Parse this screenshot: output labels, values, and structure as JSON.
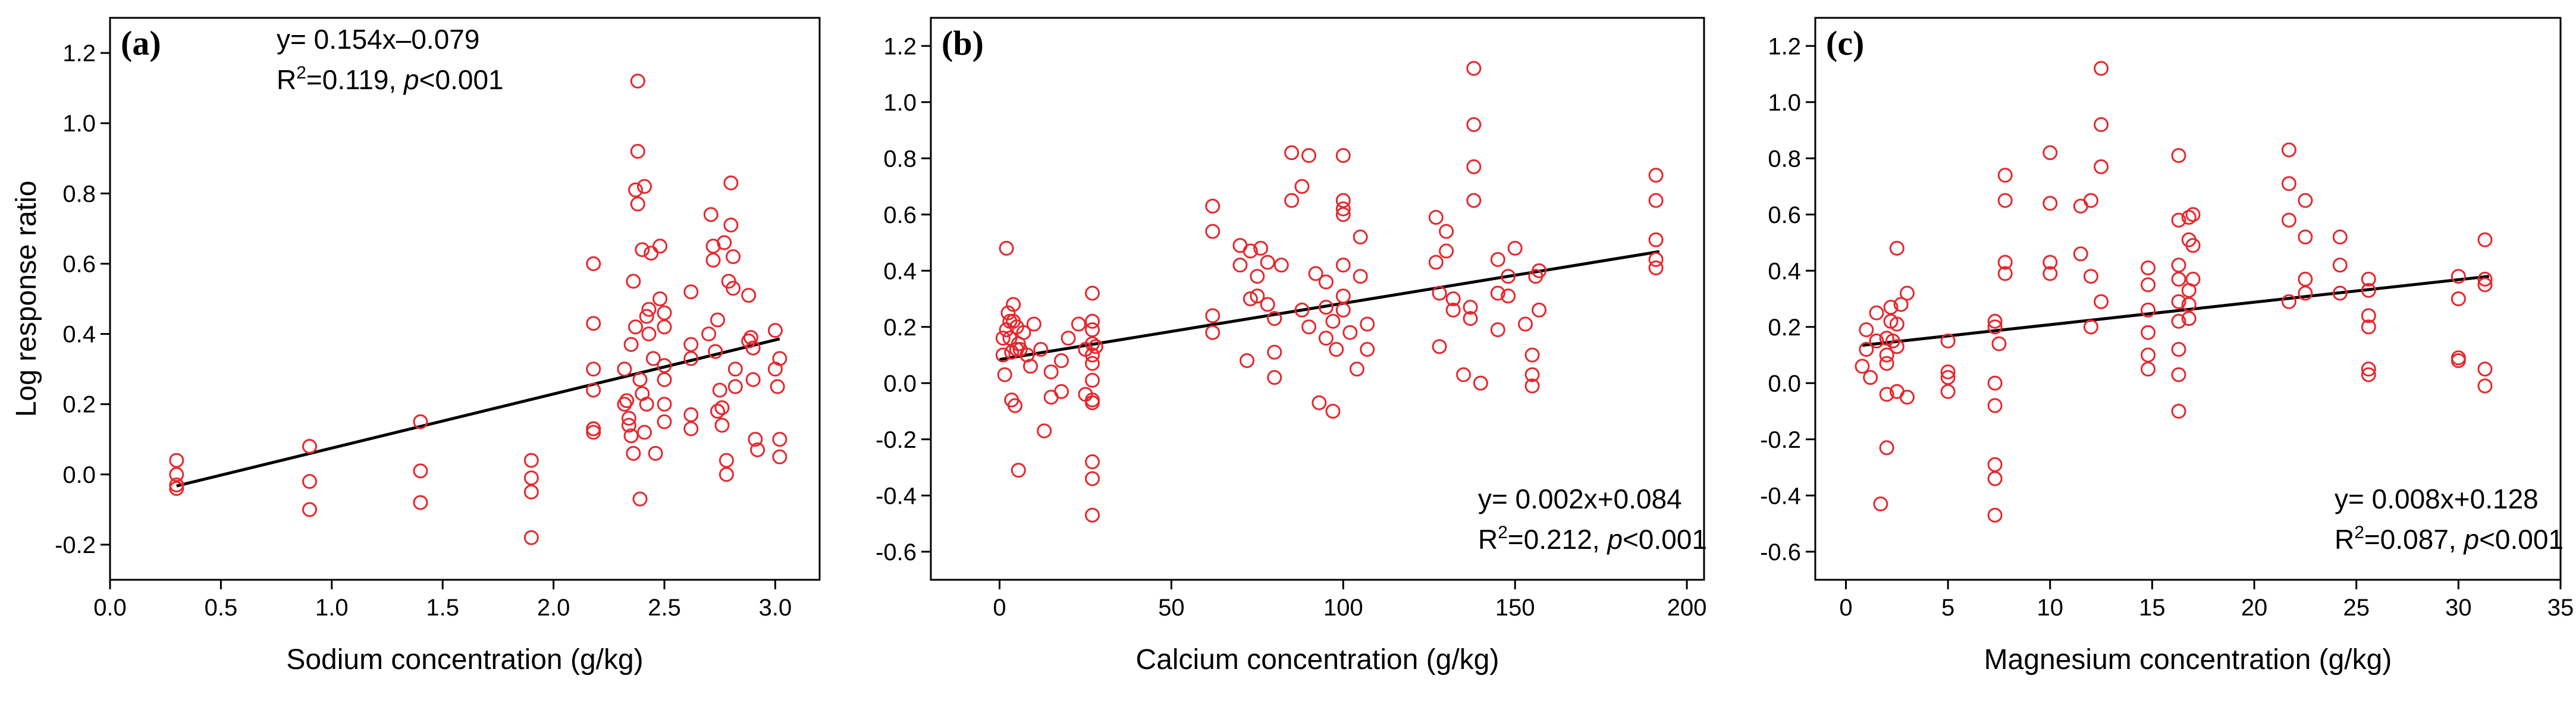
{
  "chart_data": [
    {
      "type": "scatter",
      "panel_label": "(a)",
      "xlabel": "Sodium concentration (g/kg)",
      "ylabel": "Log response ratio",
      "xlim": [
        0.0,
        3.2
      ],
      "ylim": [
        -0.3,
        1.3
      ],
      "xticks": [
        0.0,
        0.5,
        1.0,
        1.5,
        2.0,
        2.5,
        3.0
      ],
      "xtick_labels": [
        "0.0",
        "0.5",
        "1.0",
        "1.5",
        "2.0",
        "2.5",
        "3.0"
      ],
      "yticks": [
        -0.2,
        0.0,
        0.2,
        0.4,
        0.6,
        0.8,
        1.0,
        1.2
      ],
      "ytick_labels": [
        "-0.2",
        "0.0",
        "0.2",
        "0.4",
        "0.6",
        "0.8",
        "1.0",
        "1.2"
      ],
      "equation": {
        "line1": "y= 0.154x–0.079",
        "r2_prefix": "R",
        "r2_sup": "2",
        "r2_value": "=0.119, ",
        "p_symbol": "p",
        "p_value": "<0.001",
        "position": "top-center"
      },
      "fit_line": {
        "slope": 0.154,
        "intercept": -0.079,
        "x_range": [
          0.3,
          3.02
        ]
      },
      "marker_color": "#e8262b",
      "line_color": "#000000",
      "x": [
        0.3,
        0.3,
        0.3,
        0.3,
        0.9,
        0.9,
        0.9,
        1.4,
        1.4,
        1.4,
        1.9,
        1.9,
        1.9,
        1.9,
        2.18,
        2.18,
        2.18,
        2.18,
        2.18,
        2.18,
        2.18,
        2.32,
        2.32,
        2.33,
        2.34,
        2.34,
        2.35,
        2.35,
        2.36,
        2.36,
        2.37,
        2.37,
        2.38,
        2.38,
        2.38,
        2.39,
        2.39,
        2.4,
        2.4,
        2.41,
        2.41,
        2.42,
        2.42,
        2.43,
        2.43,
        2.44,
        2.45,
        2.46,
        2.48,
        2.48,
        2.5,
        2.5,
        2.5,
        2.5,
        2.5,
        2.5,
        2.62,
        2.62,
        2.62,
        2.62,
        2.62,
        2.7,
        2.71,
        2.72,
        2.72,
        2.73,
        2.74,
        2.74,
        2.75,
        2.76,
        2.76,
        2.77,
        2.78,
        2.78,
        2.79,
        2.8,
        2.8,
        2.81,
        2.81,
        2.82,
        2.82,
        2.88,
        2.88,
        2.89,
        2.9,
        2.9,
        2.91,
        2.92,
        3.0,
        3.0,
        3.01,
        3.02,
        3.02,
        3.02
      ],
      "y": [
        0.04,
        0.0,
        -0.03,
        -0.04,
        0.08,
        -0.02,
        -0.1,
        0.15,
        0.01,
        -0.08,
        0.04,
        -0.01,
        -0.05,
        -0.18,
        0.6,
        0.43,
        0.3,
        0.24,
        0.12,
        0.13,
        0.13,
        0.3,
        0.2,
        0.21,
        0.14,
        0.16,
        0.11,
        0.37,
        0.55,
        0.06,
        0.81,
        0.42,
        1.12,
        0.92,
        0.77,
        0.27,
        -0.07,
        0.23,
        0.64,
        0.82,
        0.12,
        0.2,
        0.45,
        0.47,
        0.4,
        0.63,
        0.33,
        0.06,
        0.65,
        0.5,
        0.42,
        0.46,
        0.31,
        0.27,
        0.2,
        0.15,
        0.52,
        0.37,
        0.33,
        0.17,
        0.13,
        0.4,
        0.74,
        0.65,
        0.61,
        0.35,
        0.44,
        0.18,
        0.24,
        0.19,
        0.14,
        0.66,
        0.04,
        0.0,
        0.55,
        0.83,
        0.71,
        0.62,
        0.53,
        0.3,
        0.25,
        0.51,
        0.38,
        0.39,
        0.36,
        0.27,
        0.1,
        0.07,
        0.41,
        0.3,
        0.25,
        0.33,
        0.1,
        0.05
      ]
    },
    {
      "type": "scatter",
      "panel_label": "(b)",
      "xlabel": "Calcium concentration (g/kg)",
      "ylabel": "",
      "xlim": [
        -20,
        205
      ],
      "ylim": [
        -0.7,
        1.3
      ],
      "xticks": [
        0,
        50,
        100,
        150,
        200
      ],
      "xtick_labels": [
        "0",
        "50",
        "100",
        "150",
        "200"
      ],
      "yticks": [
        -0.6,
        -0.4,
        -0.2,
        0.0,
        0.2,
        0.4,
        0.6,
        0.8,
        1.0,
        1.2
      ],
      "ytick_labels": [
        "-0.6",
        "-0.4",
        "-0.2",
        "0.0",
        "0.2",
        "0.4",
        "0.6",
        "0.8",
        "1.0",
        "1.2"
      ],
      "equation": {
        "line1": "y= 0.002x+0.084",
        "r2_prefix": "R",
        "r2_sup": "2",
        "r2_value": "=0.212, ",
        "p_symbol": "p",
        "p_value": "<0.001",
        "position": "bottom-right"
      },
      "fit_line": {
        "slope": 0.002,
        "intercept": 0.084,
        "x_range": [
          0,
          192
        ]
      },
      "marker_color": "#e8262b",
      "line_color": "#000000",
      "x": [
        1,
        1,
        1.5,
        2,
        2,
        2.5,
        3,
        3,
        3.5,
        3.5,
        4,
        4,
        4.5,
        5,
        5,
        5.5,
        5.5,
        6,
        7,
        8,
        9,
        10,
        12,
        13,
        15,
        15,
        18,
        18,
        20,
        23,
        25,
        25,
        27,
        27,
        27,
        27,
        27,
        27,
        27,
        27,
        27,
        27,
        27,
        27,
        28,
        62,
        62,
        62,
        62,
        70,
        70,
        72,
        73,
        73,
        75,
        75,
        76,
        78,
        78,
        80,
        80,
        80,
        82,
        85,
        85,
        88,
        88,
        90,
        90,
        92,
        93,
        95,
        95,
        95,
        97,
        97,
        98,
        100,
        100,
        100,
        100,
        100,
        100,
        100,
        102,
        104,
        105,
        105,
        107,
        107,
        127,
        127,
        128,
        128,
        130,
        130,
        132,
        132,
        135,
        137,
        137,
        138,
        138,
        138,
        138,
        140,
        145,
        145,
        145,
        148,
        148,
        150,
        153,
        155,
        155,
        155,
        156,
        157,
        157,
        191,
        191,
        191,
        191,
        191
      ],
      "y": [
        0.16,
        0.1,
        0.03,
        0.19,
        0.48,
        0.25,
        0.22,
        0.16,
        0.11,
        -0.06,
        0.22,
        0.28,
        -0.08,
        0.2,
        0.12,
        0.14,
        -0.31,
        0.12,
        0.18,
        0.1,
        0.06,
        0.21,
        0.12,
        -0.17,
        0.04,
        -0.05,
        0.08,
        -0.03,
        0.16,
        0.21,
        0.12,
        -0.04,
        0.32,
        0.22,
        0.19,
        0.14,
        0.1,
        0.07,
        0.01,
        -0.07,
        -0.06,
        -0.28,
        -0.34,
        -0.47,
        0.13,
        0.63,
        0.54,
        0.24,
        0.18,
        0.42,
        0.49,
        0.08,
        0.47,
        0.3,
        0.31,
        0.38,
        0.48,
        0.43,
        0.28,
        0.23,
        0.11,
        0.02,
        0.42,
        0.82,
        0.65,
        0.7,
        0.26,
        0.81,
        0.2,
        0.39,
        -0.07,
        0.36,
        0.27,
        0.16,
        -0.1,
        0.22,
        0.12,
        0.6,
        0.65,
        0.62,
        0.81,
        0.42,
        0.31,
        0.26,
        0.18,
        0.05,
        0.52,
        0.38,
        0.12,
        0.21,
        0.59,
        0.43,
        0.32,
        0.13,
        0.47,
        0.54,
        0.3,
        0.26,
        0.03,
        0.23,
        0.27,
        0.77,
        0.92,
        1.12,
        0.65,
        0.0,
        0.32,
        0.44,
        0.19,
        0.38,
        0.31,
        0.48,
        0.21,
        0.1,
        0.03,
        -0.01,
        0.38,
        0.4,
        0.26,
        0.74,
        0.65,
        0.51,
        0.44,
        0.41
      ]
    },
    {
      "type": "scatter",
      "panel_label": "(c)",
      "xlabel": "Magnesium concentration (g/kg)",
      "ylabel": "",
      "xlim": [
        -1.5,
        35
      ],
      "ylim": [
        -0.7,
        1.3
      ],
      "xticks": [
        0,
        5,
        10,
        15,
        20,
        25,
        30,
        35
      ],
      "xtick_labels": [
        "0",
        "5",
        "10",
        "15",
        "20",
        "25",
        "30",
        "35"
      ],
      "yticks": [
        -0.6,
        -0.4,
        -0.2,
        0.0,
        0.2,
        0.4,
        0.6,
        0.8,
        1.0,
        1.2
      ],
      "ytick_labels": [
        "-0.6",
        "-0.4",
        "-0.2",
        "0.0",
        "0.2",
        "0.4",
        "0.6",
        "0.8",
        "1.0",
        "1.2"
      ],
      "equation": {
        "line1": "y= 0.008x+0.128",
        "r2_prefix": "R",
        "r2_sup": "2",
        "r2_value": "=0.087, ",
        "p_symbol": "p",
        "p_value": "<0.001",
        "position": "bottom-right"
      },
      "fit_line": {
        "slope": 0.008,
        "intercept": 0.128,
        "x_range": [
          0.8,
          31.5
        ]
      },
      "marker_color": "#e8262b",
      "line_color": "#000000",
      "x": [
        0.8,
        1,
        1,
        1.2,
        1.5,
        1.5,
        1.7,
        2,
        2,
        2,
        2,
        2,
        2.2,
        2.2,
        2.3,
        2.5,
        2.5,
        2.5,
        2.5,
        2.7,
        3,
        3,
        5,
        5,
        5,
        5,
        7.3,
        7.3,
        7.3,
        7.3,
        7.3,
        7.3,
        7.3,
        7.5,
        7.8,
        7.8,
        7.8,
        7.8,
        10,
        10,
        10,
        10,
        11.5,
        11.5,
        12,
        12,
        12,
        12.5,
        12.5,
        12.5,
        12.5,
        14.8,
        14.8,
        14.8,
        14.8,
        14.8,
        14.8,
        16.3,
        16.3,
        16.3,
        16.3,
        16.3,
        16.3,
        16.3,
        16.3,
        16.3,
        16.8,
        16.8,
        16.8,
        16.8,
        16.8,
        17,
        17,
        17,
        21.7,
        21.7,
        21.7,
        21.7,
        22.5,
        22.5,
        22.5,
        22.5,
        24.2,
        24.2,
        24.2,
        25.6,
        25.6,
        25.6,
        25.6,
        25.6,
        25.6,
        30,
        30,
        30,
        30,
        31.3,
        31.3,
        31.3,
        31.3,
        31.3
      ],
      "y": [
        0.06,
        0.19,
        0.12,
        0.02,
        0.25,
        0.15,
        -0.43,
        0.16,
        0.1,
        0.07,
        -0.04,
        -0.23,
        0.22,
        0.27,
        0.15,
        0.48,
        0.21,
        0.13,
        -0.03,
        0.28,
        0.32,
        -0.05,
        0.15,
        0.04,
        0.02,
        -0.03,
        0.22,
        0.2,
        0.0,
        -0.08,
        -0.29,
        -0.34,
        -0.47,
        0.14,
        0.74,
        0.65,
        0.43,
        0.39,
        0.82,
        0.64,
        0.43,
        0.39,
        0.63,
        0.46,
        0.65,
        0.38,
        0.2,
        1.12,
        0.92,
        0.77,
        0.29,
        0.41,
        0.35,
        0.26,
        0.18,
        0.1,
        0.05,
        0.81,
        0.58,
        0.42,
        0.37,
        0.29,
        0.22,
        0.12,
        0.03,
        -0.1,
        0.59,
        0.51,
        0.33,
        0.28,
        0.23,
        0.6,
        0.49,
        0.37,
        0.83,
        0.71,
        0.58,
        0.29,
        0.65,
        0.52,
        0.37,
        0.32,
        0.52,
        0.42,
        0.32,
        0.37,
        0.33,
        0.24,
        0.2,
        0.05,
        0.03,
        0.38,
        0.3,
        0.09,
        0.08,
        0.51,
        0.37,
        0.35,
        0.05,
        -0.01
      ]
    }
  ]
}
